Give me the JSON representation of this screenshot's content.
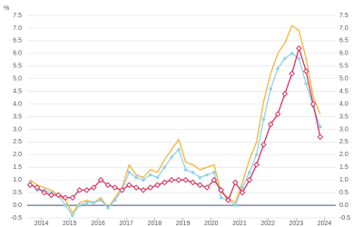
{
  "chart_data": {
    "type": "line",
    "y_unit": "%",
    "x": [
      2013.6,
      2013.85,
      2014.1,
      2014.35,
      2014.6,
      2014.85,
      2015.1,
      2015.35,
      2015.6,
      2015.85,
      2016.1,
      2016.35,
      2016.6,
      2016.85,
      2017.1,
      2017.35,
      2017.6,
      2017.85,
      2018.1,
      2018.35,
      2018.6,
      2018.85,
      2019.1,
      2019.35,
      2019.6,
      2019.85,
      2020.1,
      2020.35,
      2020.6,
      2020.85,
      2021.1,
      2021.35,
      2021.6,
      2021.85,
      2022.1,
      2022.35,
      2022.6,
      2022.85,
      2023.1,
      2023.35,
      2023.6,
      2023.85
    ],
    "series": [
      {
        "color": "#f5b43a",
        "marker": "none",
        "values": [
          1.0,
          0.8,
          0.7,
          0.6,
          0.4,
          0.2,
          -0.3,
          0.1,
          0.2,
          0.1,
          0.3,
          -0.1,
          0.3,
          0.7,
          1.6,
          1.2,
          1.1,
          1.4,
          1.3,
          1.8,
          2.2,
          2.6,
          1.7,
          1.6,
          1.4,
          1.5,
          1.6,
          0.5,
          0.3,
          0.1,
          0.9,
          1.8,
          2.5,
          4.1,
          5.2,
          6.0,
          6.4,
          7.1,
          6.9,
          5.8,
          4.3,
          3.6
        ]
      },
      {
        "color": "#8fd3ea",
        "marker": "circle",
        "values": [
          0.9,
          0.6,
          0.6,
          0.5,
          0.4,
          0.0,
          -0.4,
          0.0,
          0.1,
          0.1,
          0.2,
          -0.1,
          0.2,
          0.6,
          1.3,
          1.1,
          1.0,
          1.2,
          1.1,
          1.5,
          1.9,
          2.2,
          1.4,
          1.3,
          1.1,
          1.2,
          1.3,
          0.3,
          0.2,
          0.0,
          0.7,
          1.3,
          2.0,
          3.4,
          4.6,
          5.4,
          5.8,
          6.0,
          5.8,
          4.8,
          3.9,
          3.1
        ]
      },
      {
        "color": "#d6335f",
        "marker": "diamond",
        "values": [
          0.8,
          0.7,
          0.5,
          0.4,
          0.4,
          0.3,
          0.3,
          0.6,
          0.6,
          0.7,
          1.0,
          0.8,
          0.7,
          0.6,
          0.8,
          0.7,
          0.6,
          0.7,
          0.8,
          0.9,
          1.0,
          1.0,
          1.0,
          0.9,
          0.8,
          0.7,
          1.0,
          0.6,
          0.2,
          0.9,
          0.5,
          1.0,
          1.6,
          2.4,
          3.2,
          3.6,
          4.4,
          5.2,
          6.2,
          5.3,
          4.0,
          2.7
        ]
      }
    ],
    "xlim": [
      2013.5,
      2024.4
    ],
    "xticks": [
      2014,
      2015,
      2016,
      2017,
      2018,
      2019,
      2020,
      2021,
      2022,
      2023,
      2024
    ],
    "ylim": [
      -0.5,
      7.5
    ],
    "yticks": [
      -0.5,
      {
        "value": 0,
        "label": "0.0"
      },
      0.5,
      {
        "value": 1,
        "label": "1.0"
      },
      1.5,
      {
        "value": 2,
        "label": "2.0"
      },
      2.5,
      {
        "value": 3,
        "label": "3.0"
      },
      3.5,
      {
        "value": 4,
        "label": "4.0"
      },
      4.5,
      {
        "value": 5,
        "label": "5.0"
      },
      5.5,
      {
        "value": 6,
        "label": "6.0"
      },
      6.5,
      {
        "value": 7,
        "label": "7.0"
      },
      7.5
    ],
    "y2lim": [
      -0.5,
      7.5
    ],
    "y2ticks": [
      -0.5,
      {
        "value": 0,
        "label": "0.0"
      },
      0.5,
      {
        "value": 1,
        "label": "1.0"
      },
      1.5,
      {
        "value": 2,
        "label": "2.0"
      },
      2.5,
      {
        "value": 3,
        "label": "3.0"
      },
      3.5,
      {
        "value": 4,
        "label": "4.0"
      },
      4.5,
      {
        "value": 5,
        "label": "5.0"
      },
      5.5,
      {
        "value": 6,
        "label": "6.0"
      },
      6.5,
      {
        "value": 7,
        "label": "7.0"
      },
      7.5
    ],
    "grid": true
  }
}
